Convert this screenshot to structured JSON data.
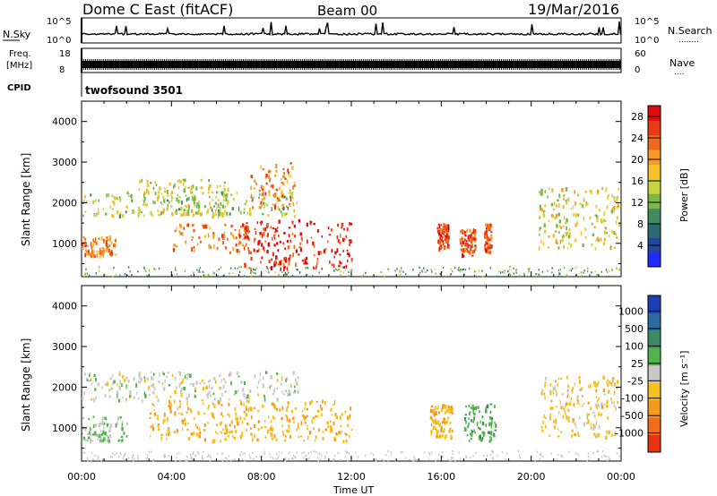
{
  "header": {
    "station": "Dome C East (fitACF)",
    "beam": "Beam 00",
    "date": "19/Mar/2016"
  },
  "panels": {
    "nsky_label": "N.Sky",
    "nsearch_label": "N.Search",
    "nsearch_dots": "........",
    "nsky_ticks": [
      "10^5",
      "10^0"
    ],
    "freq_label_1": "Freq.",
    "freq_label_2": "[MHz]",
    "freq_ticks": [
      "18",
      "8"
    ],
    "nave_label": "Nave",
    "nave_dots": "....",
    "nave_ticks": [
      "60",
      "0"
    ],
    "cpid_label": "CPID",
    "cpid_value": "twofsound 3501"
  },
  "axes": {
    "ylabel": "Slant Range [km]",
    "xlabel": "Time UT",
    "yticks": [
      "1000",
      "2000",
      "3000",
      "4000"
    ],
    "xticks": [
      "00:00",
      "04:00",
      "08:00",
      "12:00",
      "16:00",
      "20:00",
      "00:00"
    ]
  },
  "colorbars": {
    "power": {
      "label": "Power [dB]",
      "ticks": [
        "4",
        "8",
        "12",
        "16",
        "20",
        "24",
        "28"
      ],
      "colors": [
        "#1f2bff",
        "#23459c",
        "#2b6a73",
        "#3f8c60",
        "#78b94a",
        "#c9d53c",
        "#f5c02b",
        "#f59a23",
        "#f06a1c",
        "#e83a14",
        "#e00c0c"
      ]
    },
    "velocity": {
      "label": "Velocity [m s⁻¹]",
      "ticks": [
        "1000",
        "500",
        "100",
        "25",
        "-25",
        "-100",
        "-500",
        "-1000"
      ],
      "colors": [
        "#1e3fb4",
        "#2d6ca0",
        "#3b8c62",
        "#52b34a",
        "#c8c8c8",
        "#f5c11d",
        "#f59a1f",
        "#f26b19",
        "#e83214"
      ]
    }
  },
  "chart_data": [
    {
      "type": "heatmap",
      "title": "Power",
      "xlabel": "Time UT",
      "ylabel": "Slant Range [km]",
      "xlim": [
        "00:00",
        "24:00"
      ],
      "ylim": [
        180,
        4500
      ],
      "colorbar": "Power [dB]",
      "colorbar_range": [
        0,
        30
      ],
      "regions": [
        {
          "t0": 0.0,
          "t1": 9.6,
          "r0": 1700,
          "r1": 2300,
          "value": 14
        },
        {
          "t0": 0.0,
          "t1": 1.5,
          "r0": 700,
          "r1": 1200,
          "value": 22
        },
        {
          "t0": 2.5,
          "t1": 6.5,
          "r0": 1700,
          "r1": 2600,
          "value": 15
        },
        {
          "t0": 4.0,
          "t1": 7.5,
          "r0": 800,
          "r1": 1500,
          "value": 23
        },
        {
          "t0": 7.0,
          "t1": 12.0,
          "r0": 400,
          "r1": 1600,
          "value": 27
        },
        {
          "t0": 7.5,
          "t1": 9.5,
          "r0": 1900,
          "r1": 3000,
          "value": 22
        },
        {
          "t0": 15.8,
          "t1": 16.3,
          "r0": 900,
          "r1": 1500,
          "value": 26
        },
        {
          "t0": 16.8,
          "t1": 17.5,
          "r0": 700,
          "r1": 1400,
          "value": 25
        },
        {
          "t0": 17.9,
          "t1": 18.2,
          "r0": 800,
          "r1": 1500,
          "value": 24
        },
        {
          "t0": 20.3,
          "t1": 23.9,
          "r0": 900,
          "r1": 2400,
          "value": 16
        }
      ]
    },
    {
      "type": "heatmap",
      "title": "Velocity",
      "xlabel": "Time UT",
      "ylabel": "Slant Range [km]",
      "xlim": [
        "00:00",
        "24:00"
      ],
      "ylim": [
        180,
        4500
      ],
      "colorbar": "Velocity [m s⁻¹]",
      "colorbar_range": [
        -1000,
        1000
      ],
      "regions": [
        {
          "t0": 0.0,
          "t1": 9.6,
          "r0": 1700,
          "r1": 2400,
          "value": 0
        },
        {
          "t0": 0.0,
          "t1": 2.0,
          "r0": 700,
          "r1": 1300,
          "value": 80
        },
        {
          "t0": 3.0,
          "t1": 12.0,
          "r0": 700,
          "r1": 1700,
          "value": -300
        },
        {
          "t0": 15.5,
          "t1": 16.5,
          "r0": 800,
          "r1": 1600,
          "value": -300
        },
        {
          "t0": 17.0,
          "t1": 18.4,
          "r0": 700,
          "r1": 1600,
          "value": 300
        },
        {
          "t0": 20.4,
          "t1": 23.9,
          "r0": 800,
          "r1": 2300,
          "value": -200
        }
      ]
    }
  ]
}
